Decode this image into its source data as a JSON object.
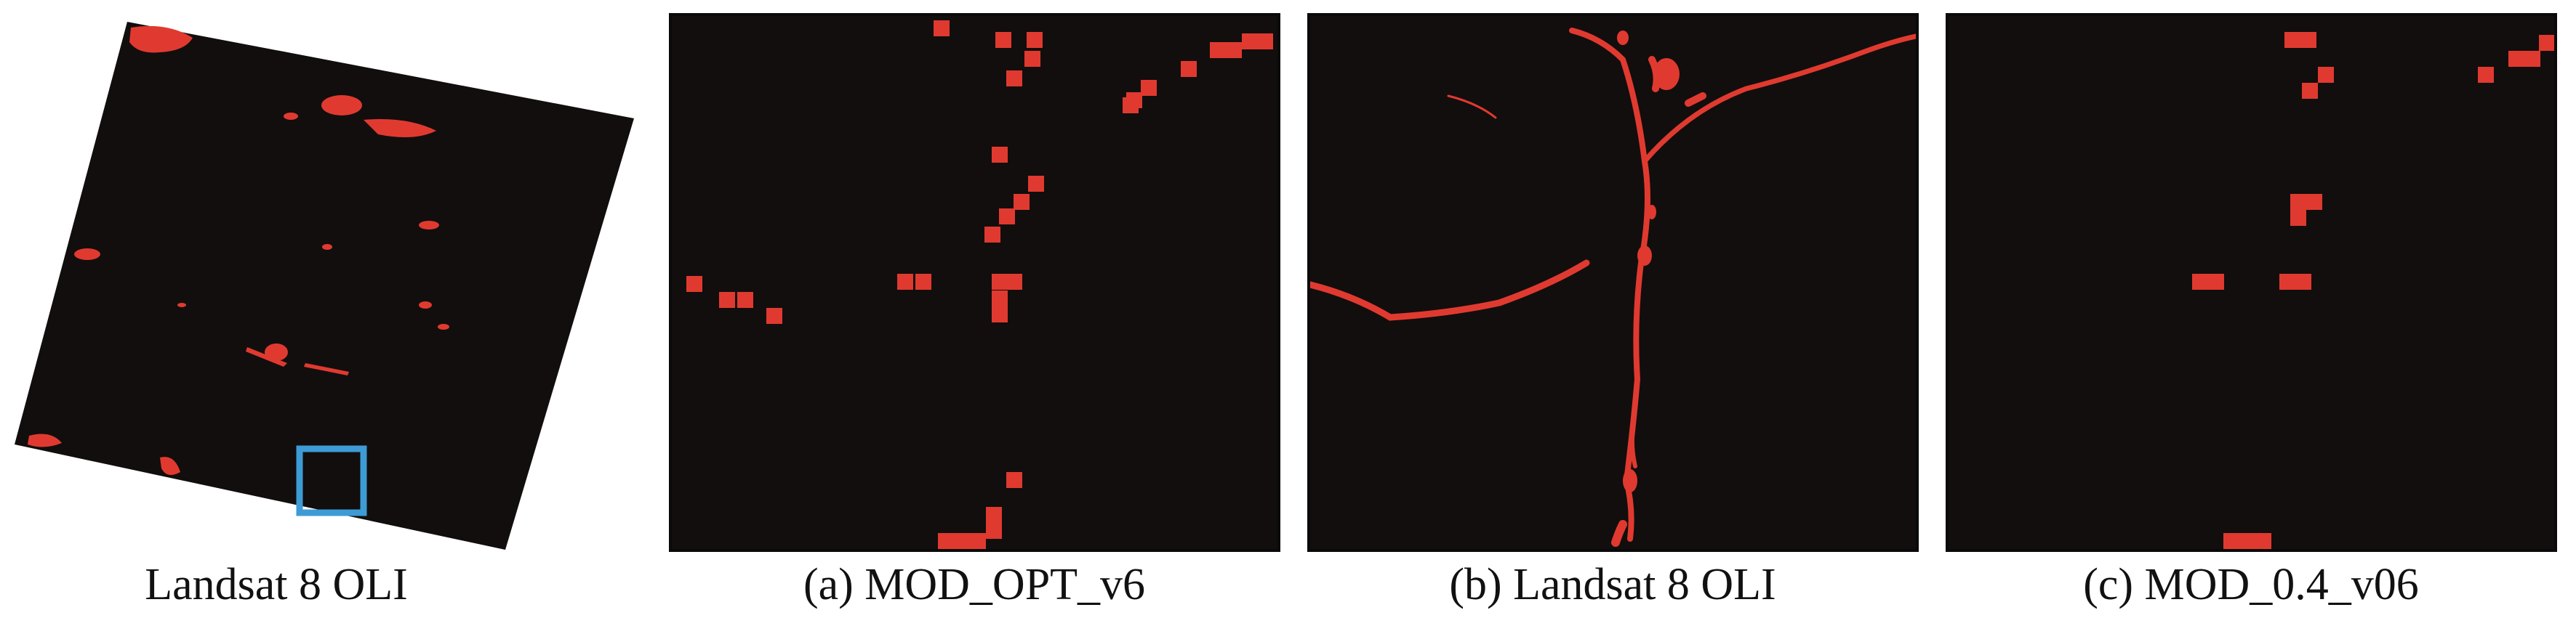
{
  "colors": {
    "background": "#120e0d",
    "fire": "#e03a30",
    "highlight_box": "#3d9bd5"
  },
  "panels": [
    {
      "id": "overview",
      "caption": "Landsat 8 OLI"
    },
    {
      "id": "a",
      "caption": "(a) MOD_OPT_v6"
    },
    {
      "id": "b",
      "caption": "(b) Landsat 8 OLI"
    },
    {
      "id": "c",
      "caption": "(c) MOD_0.4_v06"
    }
  ]
}
